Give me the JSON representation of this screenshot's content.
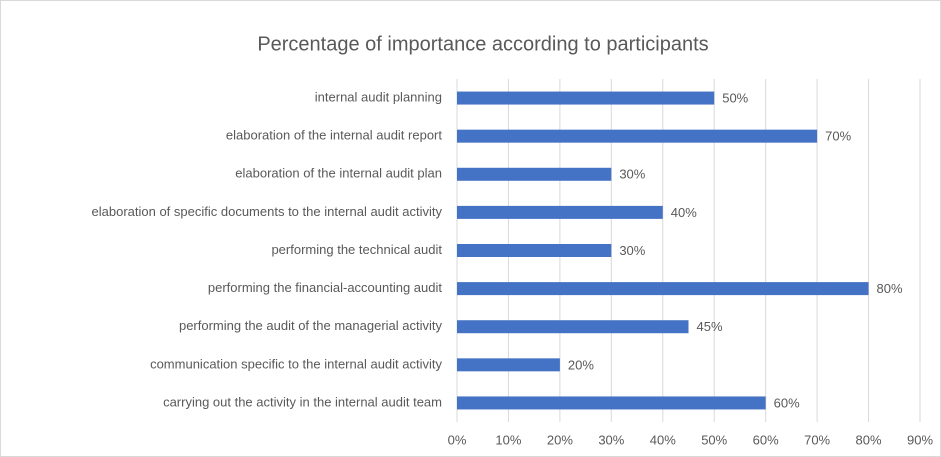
{
  "chart_data": {
    "type": "bar",
    "orientation": "horizontal",
    "title": "Percentage of importance according to participants",
    "categories": [
      "internal audit planning",
      "elaboration of the internal audit report",
      "elaboration of the internal audit plan",
      "elaboration of specific documents to the internal audit activity",
      "performing the technical audit",
      "performing the financial-accounting audit",
      "performing the audit of the managerial activity",
      "communication specific to the internal audit activity",
      "carrying out the activity in the internal audit team"
    ],
    "values": [
      50,
      70,
      30,
      40,
      30,
      80,
      45,
      20,
      60
    ],
    "value_labels": [
      "50%",
      "70%",
      "30%",
      "40%",
      "30%",
      "80%",
      "45%",
      "20%",
      "60%"
    ],
    "color": "#4472c4",
    "xlim": [
      0,
      90
    ],
    "xticks": [
      {
        "value": 0,
        "label": "0%"
      },
      {
        "value": 10,
        "label": "10%"
      },
      {
        "value": 20,
        "label": "20%"
      },
      {
        "value": 30,
        "label": "30%"
      },
      {
        "value": 40,
        "label": "40%"
      },
      {
        "value": 50,
        "label": "50%"
      },
      {
        "value": 60,
        "label": "60%"
      },
      {
        "value": 70,
        "label": "70%"
      },
      {
        "value": 80,
        "label": "80%"
      },
      {
        "value": 90,
        "label": "90%"
      }
    ],
    "grid": true
  }
}
